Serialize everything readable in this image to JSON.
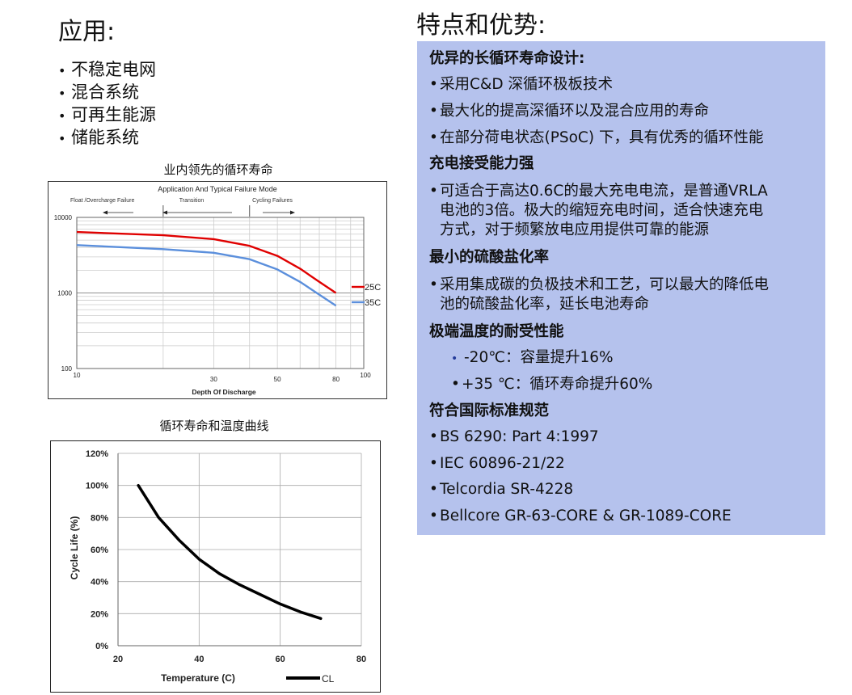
{
  "applications": {
    "title": "应用:",
    "items": [
      "不稳定电网",
      "混合系统",
      "可再生能源",
      "储能系统"
    ]
  },
  "features": {
    "title": "特点和优势:",
    "sections": [
      {
        "heading": "优异的长循环寿命设计:",
        "items": [
          "采用C&D 深循环极板技术",
          "最大化的提高深循环以及混合应用的寿命",
          "在部分荷电状态(PSoC) 下，具有优秀的循环性能"
        ]
      },
      {
        "heading": "充电接受能力强",
        "items": [
          "可适合于高达0.6C的最大充电电流，是普通VRLA",
          "电池的3倍。极大的缩短充电时间，适合快速充电",
          "方式，对于频繁放电应用提供可靠的能源"
        ]
      },
      {
        "heading": "最小的硫酸盐化率",
        "items": [
          "采用集成碳的负极技术和工艺，可以最大的降低电",
          "池的硫酸盐化率，延长电池寿命"
        ]
      },
      {
        "heading": "极端温度的耐受性能",
        "items": [
          "-20℃：容量提升16%",
          "+35 ℃：循环寿命提升60%"
        ]
      },
      {
        "heading": "符合国际标准规范",
        "items": [
          "BS 6290: Part 4:1997",
          "IEC 60896-21/22",
          "Telcordia SR-4228",
          "Bellcore GR-63-CORE & GR-1089-CORE"
        ]
      }
    ]
  },
  "colors": {
    "panel_bg": "#b5c2ed",
    "series_25c": "#e00000",
    "series_35c": "#5b8fdc",
    "series_cl": "#000000"
  },
  "chart_data": [
    {
      "type": "line",
      "caption": "业内领先的循环寿命",
      "title": "Application And Typical Failure Mode",
      "zones": [
        "Float /Overcharge Failure",
        "Transition",
        "Cycling Failures"
      ],
      "xlabel": "Depth Of Discharge",
      "ylabel": "",
      "x_scale": "log",
      "y_scale": "log",
      "x_ticks": [
        10,
        30,
        50,
        80,
        100
      ],
      "y_ticks": [
        100,
        1000,
        10000
      ],
      "xlim": [
        10,
        100
      ],
      "ylim": [
        100,
        10000
      ],
      "series": [
        {
          "name": "25C",
          "x": [
            10,
            20,
            30,
            40,
            50,
            60,
            70,
            80
          ],
          "y": [
            6400,
            5800,
            5150,
            4200,
            3100,
            2100,
            1400,
            1000
          ]
        },
        {
          "name": "35C",
          "x": [
            10,
            20,
            30,
            40,
            50,
            60,
            70,
            80
          ],
          "y": [
            4300,
            3800,
            3400,
            2800,
            2050,
            1400,
            950,
            680
          ]
        }
      ],
      "legend": "right"
    },
    {
      "type": "line",
      "caption": "循环寿命和温度曲线",
      "xlabel": "Temperature (C)",
      "ylabel": "Cycle Life (%)",
      "xlim": [
        20,
        80
      ],
      "ylim": [
        0,
        120
      ],
      "x_ticks": [
        20,
        40,
        60,
        80
      ],
      "y_ticks": [
        "0%",
        "20%",
        "40%",
        "60%",
        "80%",
        "100%",
        "120%"
      ],
      "grid": true,
      "series": [
        {
          "name": "CL",
          "x": [
            25,
            30,
            35,
            40,
            45,
            50,
            55,
            60,
            65,
            70
          ],
          "y": [
            100,
            80,
            66,
            54,
            45,
            38,
            32,
            26,
            21,
            17
          ]
        }
      ],
      "legend": "bottom-right"
    }
  ]
}
